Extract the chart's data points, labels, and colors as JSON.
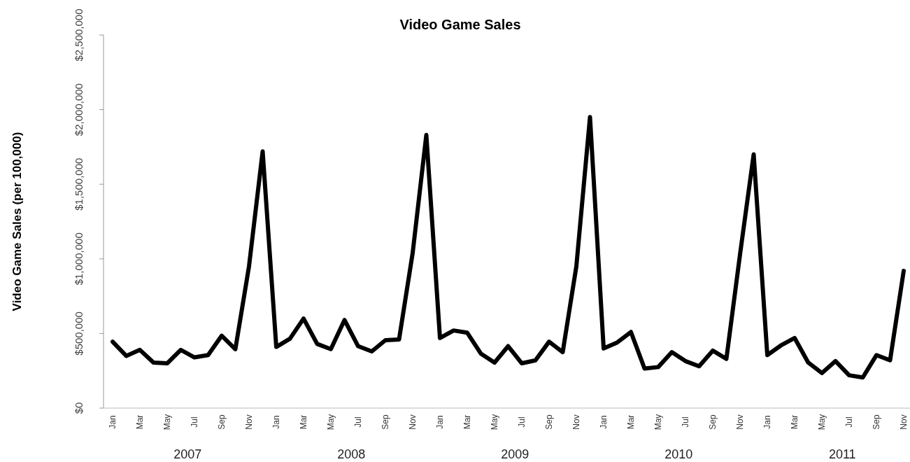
{
  "chart_data": {
    "type": "line",
    "title": "Video Game Sales",
    "ylabel": "Video Game Sales (per 100,000)",
    "categories": [
      "Jan",
      null,
      "Mar",
      null,
      "May",
      null,
      "Jul",
      null,
      "Sep",
      null,
      "Nov",
      null,
      "Jan",
      null,
      "Mar",
      null,
      "May",
      null,
      "Jul",
      null,
      "Sep",
      null,
      "Nov",
      null,
      "Jan",
      null,
      "Mar",
      null,
      "May",
      null,
      "Jul",
      null,
      "Sep",
      null,
      "Nov",
      null,
      "Jan",
      null,
      "Mar",
      null,
      "May",
      null,
      "Jul",
      null,
      "Sep",
      null,
      "Nov",
      null,
      "Jan",
      null,
      "Mar",
      null,
      "May",
      null,
      "Jul",
      null,
      "Sep",
      null,
      "Nov"
    ],
    "series": [
      {
        "color": "#000000",
        "values": [
          445000,
          350000,
          390000,
          305000,
          300000,
          390000,
          340000,
          355000,
          485000,
          395000,
          950000,
          1720000,
          410000,
          465000,
          600000,
          430000,
          395000,
          590000,
          415000,
          380000,
          455000,
          460000,
          1040000,
          1830000,
          470000,
          520000,
          505000,
          365000,
          305000,
          415000,
          300000,
          320000,
          445000,
          375000,
          950000,
          1950000,
          400000,
          440000,
          510000,
          265000,
          275000,
          375000,
          315000,
          280000,
          385000,
          330000,
          1030000,
          1700000,
          355000,
          420000,
          470000,
          305000,
          235000,
          315000,
          220000,
          205000,
          355000,
          320000,
          920000
        ]
      }
    ],
    "ylim": [
      0,
      2500000
    ],
    "yticks": [
      {
        "value": 0,
        "label": "$0"
      },
      {
        "value": 500000,
        "label": "$500,000"
      },
      {
        "value": 1000000,
        "label": "$1,000,000"
      },
      {
        "value": 1500000,
        "label": "$1,500,000"
      },
      {
        "value": 2000000,
        "label": "$2,000,000"
      },
      {
        "value": 2500000,
        "label": "$2,500,000"
      }
    ],
    "annotations": [
      "2007",
      "2008",
      "2009",
      "2010",
      "2011"
    ],
    "marker": "none",
    "line_style": "solid"
  }
}
